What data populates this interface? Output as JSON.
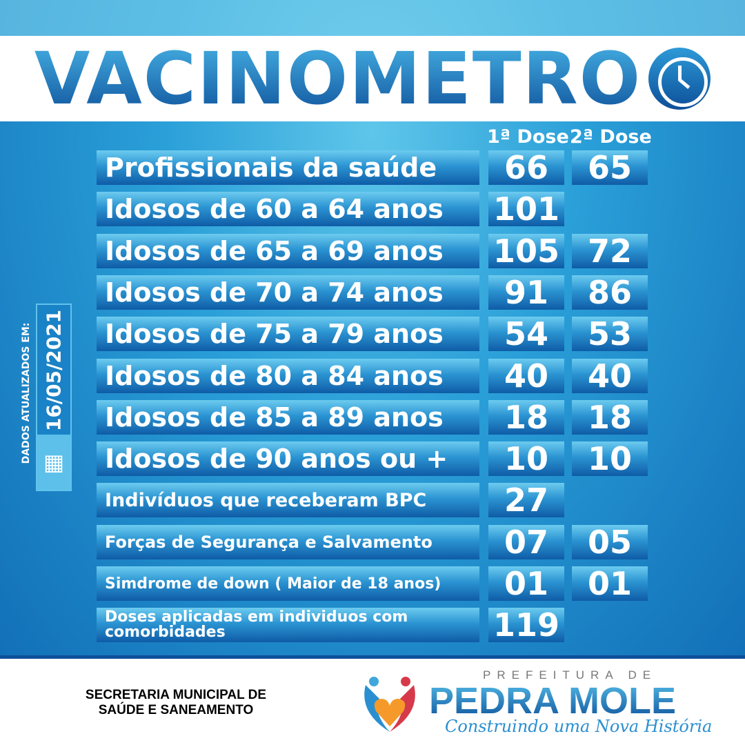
{
  "title": "VACINOMETRO",
  "headers": {
    "dose1": "1ª Dose",
    "dose2": "2ª Dose"
  },
  "rows": [
    {
      "label": "Profissionais da saúde",
      "dose1": "66",
      "dose2": "65"
    },
    {
      "label": "Idosos de 60 a 64 anos",
      "dose1": "101",
      "dose2": ""
    },
    {
      "label": "Idosos de 65 a 69 anos",
      "dose1": "105",
      "dose2": "72"
    },
    {
      "label": "Idosos de 70 a 74 anos",
      "dose1": "91",
      "dose2": "86"
    },
    {
      "label": "Idosos de 75 a 79 anos",
      "dose1": "54",
      "dose2": "53"
    },
    {
      "label": "Idosos de 80 a 84 anos",
      "dose1": "40",
      "dose2": "40"
    },
    {
      "label": "Idosos de 85 a 89 anos",
      "dose1": "18",
      "dose2": "18"
    },
    {
      "label": "Idosos de 90 anos ou +",
      "dose1": "10",
      "dose2": "10"
    },
    {
      "label": "Indivíduos que receberam BPC",
      "dose1": "27",
      "dose2": ""
    },
    {
      "label": "Forças de Segurança e Salvamento",
      "dose1": "07",
      "dose2": "05"
    },
    {
      "label": "Simdrome de down ( Maior de 18 anos)",
      "dose1": "01",
      "dose2": "01"
    },
    {
      "label": "Doses aplicadas em individuos com comorbidades",
      "dose1": "119",
      "dose2": ""
    }
  ],
  "updated": {
    "label": "DADOS ATUALIZADOS EM:",
    "date": "16/05/2021",
    "icon": "calendar-icon"
  },
  "footer": {
    "secretaria_line1": "SECRETARIA MUNICIPAL DE",
    "secretaria_line2": "SAÚDE E SANEAMENTO",
    "prefeitura": "PREFEITURA DE",
    "city": "PEDRA MOLE",
    "slogan": "Construindo uma Nova História"
  },
  "colors": {
    "primary": "#0d4f99",
    "accent": "#2b94d2",
    "light": "#6ccbef"
  }
}
